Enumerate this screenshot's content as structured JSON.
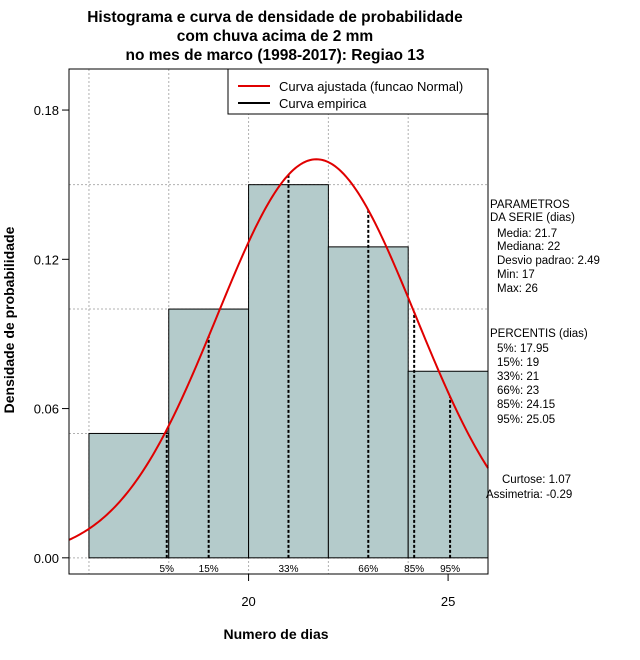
{
  "chart_data": {
    "type": "histogram",
    "title": [
      "Histograma e curva de densidade de probabilidade",
      "com chuva acima de 2 mm",
      "no mes de marco (1998-2017): Regiao 13"
    ],
    "xlabel": "Numero de dias",
    "ylabel": "Densidade de probabilidade",
    "xlim": [
      15.5,
      26.0
    ],
    "ylim": [
      -0.0065,
      0.1965
    ],
    "x_ticks": [
      20,
      25
    ],
    "y_ticks": [
      0.0,
      0.06,
      0.12,
      0.18
    ],
    "y_tick_labels": [
      "0.00",
      "0.06",
      "0.12",
      "0.18"
    ],
    "grid_y": [
      0.05,
      0.1,
      0.15
    ],
    "bars": [
      {
        "x0": 16,
        "x1": 18,
        "density": 0.05
      },
      {
        "x0": 18,
        "x1": 20,
        "density": 0.1
      },
      {
        "x0": 20,
        "x1": 22,
        "density": 0.15
      },
      {
        "x0": 22,
        "x1": 24,
        "density": 0.125
      },
      {
        "x0": 24,
        "x1": 26,
        "density": 0.075
      }
    ],
    "bar_color": "#b4cbcb",
    "normal_curve": {
      "mean": 21.7,
      "sd": 2.49,
      "color": "#e00000"
    },
    "percentiles": [
      {
        "label": "5%",
        "value": 17.95
      },
      {
        "label": "15%",
        "value": 19
      },
      {
        "label": "33%",
        "value": 21
      },
      {
        "label": "66%",
        "value": 23
      },
      {
        "label": "85%",
        "value": 24.15
      },
      {
        "label": "95%",
        "value": 25.05
      }
    ],
    "legend": {
      "position": "top-right",
      "entries": [
        {
          "label": "Curva ajustada (funcao Normal)",
          "color": "#e00000"
        },
        {
          "label": "Curva empirica",
          "color": "#000000"
        }
      ]
    },
    "stats": {
      "header": [
        "PARAMETROS",
        "DA SERIE (dias)"
      ],
      "lines": [
        "Media: 21.7",
        "Mediana: 22",
        "Desvio padrao: 2.49",
        "Min: 17",
        "Max: 26"
      ],
      "percentis_header": "PERCENTIS (dias)",
      "percentis_lines": [
        "5%: 17.95",
        "15%: 19",
        "33%: 21",
        "66%: 23",
        "85%: 24.15",
        "95%: 25.05"
      ],
      "curtose": "Curtose: 1.07",
      "assimetria": "Assimetria: -0.29"
    }
  }
}
